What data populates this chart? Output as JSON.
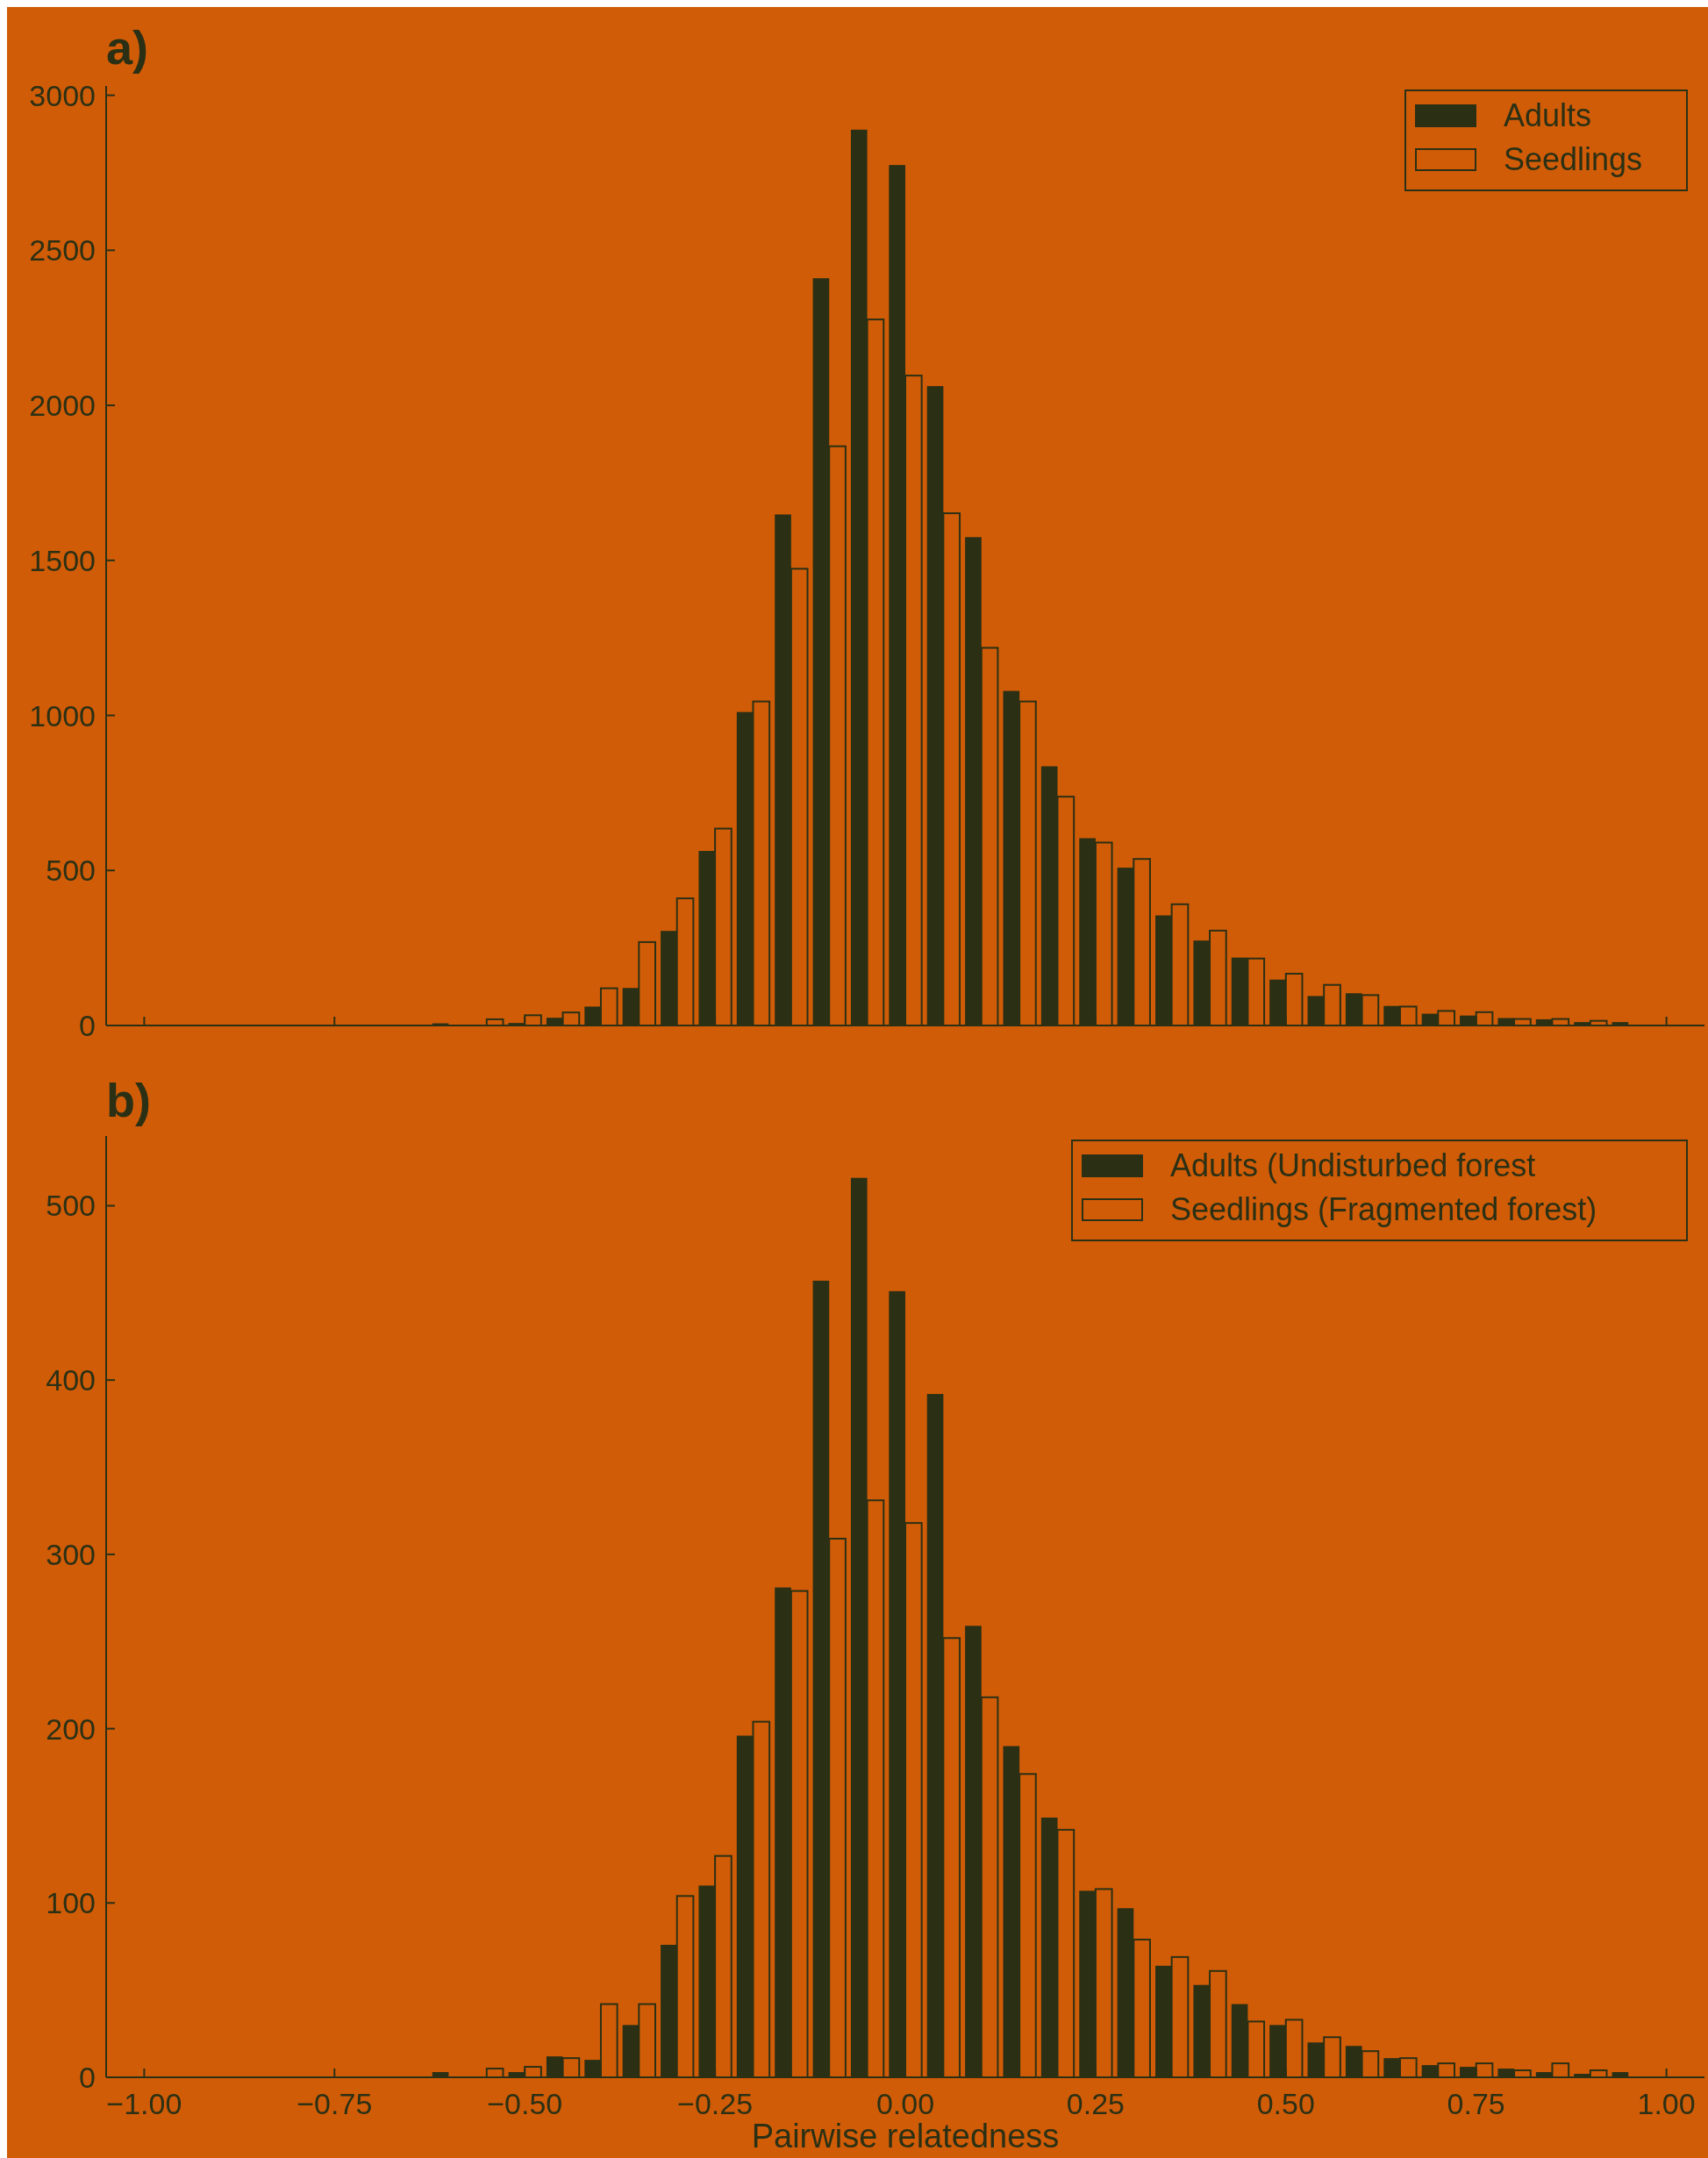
{
  "chart_data": [
    {
      "type": "histogram",
      "title": "a)",
      "bins": [
        -0.625,
        -0.575,
        -0.525,
        -0.475,
        -0.425,
        -0.375,
        -0.325,
        -0.275,
        -0.225,
        -0.175,
        -0.125,
        -0.075,
        -0.025,
        0.025,
        0.075,
        0.125,
        0.175,
        0.225,
        0.275,
        0.325,
        0.375,
        0.425,
        0.475,
        0.525,
        0.575,
        0.625,
        0.675,
        0.725,
        0.775,
        0.825,
        0.875,
        0.925,
        0.975
      ],
      "series": [
        {
          "name": "Adults",
          "color": "#2b3014",
          "values": [
            7,
            0,
            8,
            25,
            61,
            121,
            305,
            563,
            1011,
            1648,
            2410,
            2889,
            2775,
            2062,
            1575,
            1079,
            836,
            604,
            509,
            355,
            274,
            219,
            148,
            95,
            104,
            63,
            38,
            32,
            24,
            20,
            11,
            11
          ]
        },
        {
          "name": "Seedlings",
          "color": "#d15c08",
          "values": [
            0,
            20,
            33,
            42,
            120,
            269,
            410,
            635,
            1045,
            1473,
            1868,
            2277,
            2096,
            1652,
            1218,
            1045,
            738,
            590,
            537,
            391,
            306,
            216,
            167,
            131,
            98,
            61,
            47,
            43,
            21,
            21,
            15,
            0
          ]
        }
      ],
      "xlim": [
        -1.05,
        1.05
      ],
      "ylim": [
        0,
        3030
      ],
      "xticks": [
        -1,
        -0.75,
        -0.5,
        -0.25,
        0,
        0.25,
        0.5,
        0.75,
        1
      ],
      "yticks": [
        0,
        500,
        1000,
        1500,
        2000,
        2500,
        3000
      ],
      "tick_labels": "y",
      "legend": "top right"
    },
    {
      "type": "histogram",
      "title": "b)",
      "xlabel": "Pairwise relatedness",
      "bins": [
        -0.625,
        -0.575,
        -0.525,
        -0.475,
        -0.425,
        -0.375,
        -0.325,
        -0.275,
        -0.225,
        -0.175,
        -0.125,
        -0.075,
        -0.025,
        0.025,
        0.075,
        0.125,
        0.175,
        0.225,
        0.275,
        0.325,
        0.375,
        0.425,
        0.475,
        0.525,
        0.575,
        0.625,
        0.675,
        0.725,
        0.775,
        0.825,
        0.875,
        0.925,
        0.975
      ],
      "series": [
        {
          "name": "Adults (Undisturbed forest",
          "color": "#2b3014",
          "values": [
            3,
            0,
            3,
            12,
            10,
            30,
            76,
            110,
            196,
            281,
            457,
            516,
            451,
            392,
            259,
            190,
            149,
            107,
            97,
            64,
            53,
            42,
            30,
            20,
            18,
            11,
            7,
            6,
            5,
            3,
            2,
            3
          ]
        },
        {
          "name": "Seedlings (Fragmented forest)",
          "color": "#d15c08",
          "values": [
            0,
            5,
            6,
            11,
            42,
            42,
            104,
            127,
            204,
            279,
            309,
            331,
            318,
            252,
            218,
            174,
            142,
            108,
            79,
            69,
            61,
            32,
            33,
            23,
            15,
            11,
            8,
            8,
            4,
            8,
            4,
            0
          ]
        }
      ],
      "xlim": [
        -1.05,
        1.05
      ],
      "ylim": [
        0,
        540
      ],
      "xticks": [
        {
          "value": -1,
          "label": "−1.00"
        },
        {
          "value": -0.75,
          "label": "−0.75"
        },
        {
          "value": -0.5,
          "label": "−0.50"
        },
        {
          "value": -0.25,
          "label": "−0.25"
        },
        {
          "value": 0,
          "label": "0.00"
        },
        {
          "value": 0.25,
          "label": "0.25"
        },
        {
          "value": 0.5,
          "label": "0.50"
        },
        {
          "value": 0.75,
          "label": "0.75"
        },
        {
          "value": 1,
          "label": "1.00"
        }
      ],
      "yticks": [
        0,
        100,
        200,
        300,
        400,
        500
      ],
      "legend": "top right"
    }
  ]
}
